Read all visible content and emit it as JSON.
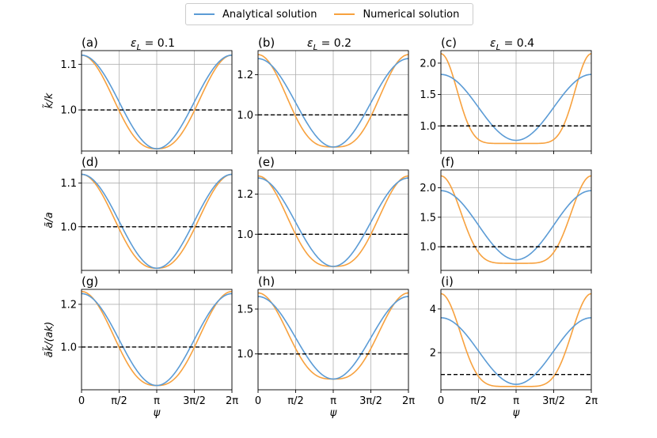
{
  "colors": {
    "analytical": "#5b9bd5",
    "numerical": "#f7a13e",
    "reference": "#000000",
    "grid": "#b0b0b0"
  },
  "legend": {
    "analytical_label": "Analytical solution",
    "numerical_label": "Numerical solution",
    "placement": "top-center"
  },
  "row_ylabels": [
    "k̃/k",
    "ã/a",
    "ãk̃/(ak)"
  ],
  "col_titles": [
    "ε_L = 0.1",
    "ε_L = 0.2",
    "ε_L = 0.4"
  ],
  "xlabel": "ψ",
  "chart_data": {
    "type": "line",
    "grid": true,
    "x_range": [
      0,
      6.2832
    ],
    "x_ticks": [
      0,
      1.5708,
      3.1416,
      4.7124,
      6.2832
    ],
    "x_tick_labels": [
      "0",
      "π/2",
      "π",
      "3π/2",
      "2π"
    ],
    "panels": [
      {
        "label": "(a)",
        "row": 0,
        "col": 0,
        "ylim": [
          0.91,
          1.13
        ],
        "yticks": [
          1.0,
          1.1
        ],
        "ytick_labels": [
          "1.0",
          "1.1"
        ],
        "reference_y": 1.0,
        "analytical": {
          "max": 1.12,
          "min": 0.915,
          "p": 1.0
        },
        "numerical": {
          "max": 1.12,
          "min": 0.915,
          "p": 1.3
        }
      },
      {
        "label": "(b)",
        "row": 0,
        "col": 1,
        "ylim": [
          0.82,
          1.32
        ],
        "yticks": [
          1.0,
          1.2
        ],
        "ytick_labels": [
          "1.0",
          "1.2"
        ],
        "reference_y": 1.0,
        "analytical": {
          "max": 1.28,
          "min": 0.84,
          "p": 1.0
        },
        "numerical": {
          "max": 1.3,
          "min": 0.84,
          "p": 1.6
        }
      },
      {
        "label": "(c)",
        "row": 0,
        "col": 2,
        "ylim": [
          0.6,
          2.2
        ],
        "yticks": [
          1.0,
          1.5,
          2.0
        ],
        "ytick_labels": [
          "1.0",
          "1.5",
          "2.0"
        ],
        "reference_y": 1.0,
        "analytical": {
          "max": 1.82,
          "min": 0.77,
          "p": 1.0
        },
        "numerical": {
          "max": 2.15,
          "min": 0.72,
          "p": 4.5
        }
      },
      {
        "label": "(d)",
        "row": 1,
        "col": 0,
        "ylim": [
          0.9,
          1.13
        ],
        "yticks": [
          1.0,
          1.1
        ],
        "ytick_labels": [
          "1.0",
          "1.1"
        ],
        "reference_y": 1.0,
        "analytical": {
          "max": 1.12,
          "min": 0.905,
          "p": 1.0
        },
        "numerical": {
          "max": 1.12,
          "min": 0.905,
          "p": 1.25
        }
      },
      {
        "label": "(e)",
        "row": 1,
        "col": 1,
        "ylim": [
          0.82,
          1.32
        ],
        "yticks": [
          1.0,
          1.2
        ],
        "ytick_labels": [
          "1.0",
          "1.2"
        ],
        "reference_y": 1.0,
        "analytical": {
          "max": 1.28,
          "min": 0.84,
          "p": 1.0
        },
        "numerical": {
          "max": 1.29,
          "min": 0.84,
          "p": 1.5
        }
      },
      {
        "label": "(f)",
        "row": 1,
        "col": 2,
        "ylim": [
          0.6,
          2.3
        ],
        "yticks": [
          1.0,
          1.5,
          2.0
        ],
        "ytick_labels": [
          "1.0",
          "1.5",
          "2.0"
        ],
        "reference_y": 1.0,
        "analytical": {
          "max": 1.95,
          "min": 0.78,
          "p": 1.0
        },
        "numerical": {
          "max": 2.2,
          "min": 0.72,
          "p": 3.0
        }
      },
      {
        "label": "(g)",
        "row": 2,
        "col": 0,
        "ylim": [
          0.8,
          1.27
        ],
        "yticks": [
          1.0,
          1.2
        ],
        "ytick_labels": [
          "1.0",
          "1.2"
        ],
        "reference_y": 1.0,
        "analytical": {
          "max": 1.25,
          "min": 0.82,
          "p": 1.0
        },
        "numerical": {
          "max": 1.26,
          "min": 0.82,
          "p": 1.3
        }
      },
      {
        "label": "(h)",
        "row": 2,
        "col": 1,
        "ylim": [
          0.6,
          1.72
        ],
        "yticks": [
          1.0,
          1.5
        ],
        "ytick_labels": [
          "1.0",
          "1.5"
        ],
        "reference_y": 1.0,
        "analytical": {
          "max": 1.64,
          "min": 0.72,
          "p": 1.0
        },
        "numerical": {
          "max": 1.68,
          "min": 0.72,
          "p": 1.5
        }
      },
      {
        "label": "(i)",
        "row": 2,
        "col": 2,
        "ylim": [
          0.3,
          4.9
        ],
        "yticks": [
          2,
          4
        ],
        "ytick_labels": [
          "2",
          "4"
        ],
        "reference_y": 1.0,
        "analytical": {
          "max": 3.6,
          "min": 0.55,
          "p": 1.0
        },
        "numerical": {
          "max": 4.7,
          "min": 0.45,
          "p": 3.2
        }
      }
    ]
  }
}
